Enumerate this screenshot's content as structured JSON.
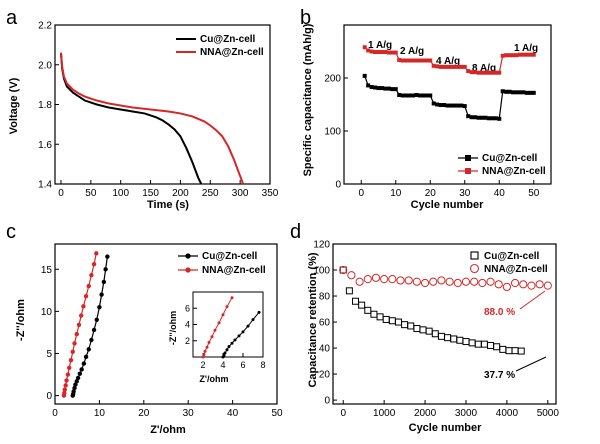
{
  "chart_data": [
    {
      "id": "a",
      "type": "line",
      "panel_label": "a",
      "xlabel": "Time (s)",
      "ylabel": "Voltage (V)",
      "xlim": [
        -10,
        350
      ],
      "ylim": [
        1.4,
        2.2
      ],
      "xticks": [
        0,
        50,
        100,
        150,
        200,
        250,
        300,
        350
      ],
      "yticks": [
        1.4,
        1.6,
        1.8,
        2.0,
        2.2
      ],
      "xtick_labels": [
        "0",
        "50",
        "100",
        "150",
        "200",
        "250",
        "300",
        "350"
      ],
      "ytick_labels": [
        "1.4",
        "1.6",
        "1.8",
        "2.0",
        "2.2"
      ],
      "legend_position": "top-right",
      "series": [
        {
          "name": "Cu@Zn-cell",
          "color": "#000000",
          "x": [
            0,
            2,
            5,
            10,
            20,
            30,
            40,
            60,
            80,
            100,
            120,
            140,
            150,
            160,
            170,
            180,
            190,
            200,
            205,
            210,
            215,
            220,
            225,
            230,
            235
          ],
          "y": [
            2.06,
            1.98,
            1.93,
            1.89,
            1.86,
            1.84,
            1.82,
            1.8,
            1.785,
            1.775,
            1.765,
            1.755,
            1.745,
            1.735,
            1.72,
            1.7,
            1.675,
            1.64,
            1.61,
            1.58,
            1.545,
            1.51,
            1.47,
            1.43,
            1.4
          ]
        },
        {
          "name": "NNA@Zn-cell",
          "color": "#d62728",
          "x": [
            0,
            2,
            5,
            10,
            20,
            30,
            40,
            60,
            80,
            100,
            120,
            150,
            180,
            200,
            220,
            240,
            250,
            260,
            270,
            280,
            285,
            290,
            295,
            300,
            305
          ],
          "y": [
            2.06,
            1.99,
            1.94,
            1.905,
            1.875,
            1.855,
            1.84,
            1.82,
            1.805,
            1.795,
            1.785,
            1.775,
            1.765,
            1.755,
            1.74,
            1.715,
            1.695,
            1.67,
            1.64,
            1.59,
            1.555,
            1.52,
            1.48,
            1.44,
            1.4
          ]
        }
      ]
    },
    {
      "id": "b",
      "type": "scatter-line",
      "panel_label": "b",
      "xlabel": "Cycle number",
      "ylabel": "Specific capacitance (mAh/g)",
      "xlim": [
        -5,
        55
      ],
      "ylim": [
        0,
        300
      ],
      "xticks": [
        0,
        10,
        20,
        30,
        40,
        50
      ],
      "yticks": [
        0,
        100,
        200
      ],
      "xtick_labels": [
        "0",
        "10",
        "20",
        "30",
        "40",
        "50"
      ],
      "ytick_labels": [
        "0",
        "100",
        "200"
      ],
      "legend_position": "bottom-right",
      "annotations": [
        "1 A/g",
        "2 A/g",
        "4 A/g",
        "8 A/g",
        "1 A/g"
      ],
      "series": [
        {
          "name": "Cu@Zn-cell",
          "color": "#000000",
          "marker": "square",
          "x": [
            1,
            2,
            3,
            4,
            5,
            6,
            7,
            8,
            9,
            10,
            11,
            12,
            13,
            14,
            15,
            16,
            17,
            18,
            19,
            20,
            21,
            22,
            23,
            24,
            25,
            26,
            27,
            28,
            29,
            30,
            31,
            32,
            33,
            34,
            35,
            36,
            37,
            38,
            39,
            40,
            41,
            42,
            43,
            44,
            45,
            46,
            47,
            48,
            49,
            50
          ],
          "y": [
            204,
            186,
            183,
            182,
            181,
            181,
            180,
            180,
            179,
            179,
            168,
            167,
            167,
            167,
            167,
            168,
            167,
            167,
            167,
            167,
            152,
            150,
            149,
            149,
            148,
            148,
            148,
            148,
            148,
            147,
            128,
            126,
            126,
            125,
            125,
            125,
            124,
            124,
            124,
            123,
            175,
            174,
            174,
            173,
            173,
            173,
            173,
            172,
            172,
            172
          ]
        },
        {
          "name": "NNA@Zn-cell",
          "color": "#d62728",
          "marker": "square",
          "x": [
            1,
            2,
            3,
            4,
            5,
            6,
            7,
            8,
            9,
            10,
            11,
            12,
            13,
            14,
            15,
            16,
            17,
            18,
            19,
            20,
            21,
            22,
            23,
            24,
            25,
            26,
            27,
            28,
            29,
            30,
            31,
            32,
            33,
            34,
            35,
            36,
            37,
            38,
            39,
            40,
            41,
            42,
            43,
            44,
            45,
            46,
            47,
            48,
            49,
            50
          ],
          "y": [
            258,
            252,
            250,
            249,
            249,
            249,
            249,
            248,
            248,
            248,
            234,
            233,
            233,
            233,
            233,
            233,
            233,
            233,
            233,
            233,
            223,
            222,
            221,
            221,
            221,
            221,
            221,
            221,
            221,
            221,
            213,
            211,
            211,
            210,
            210,
            210,
            210,
            210,
            210,
            210,
            242,
            243,
            243,
            243,
            243,
            244,
            244,
            244,
            244,
            244
          ]
        }
      ]
    },
    {
      "id": "c",
      "type": "scatter-line",
      "panel_label": "c",
      "xlabel": "Z'/ohm",
      "ylabel": "-Z''/ohm",
      "xlim": [
        0,
        50
      ],
      "ylim": [
        -1,
        18
      ],
      "xticks": [
        0,
        10,
        20,
        30,
        40,
        50
      ],
      "yticks": [
        0,
        5,
        10,
        15
      ],
      "xtick_labels": [
        "0",
        "10",
        "20",
        "30",
        "40",
        "50"
      ],
      "ytick_labels": [
        "0",
        "5",
        "10",
        "15"
      ],
      "legend_position": "top-right",
      "series": [
        {
          "name": "Cu@Zn-cell",
          "color": "#000000",
          "marker": "circle",
          "x": [
            4.0,
            4.1,
            4.2,
            4.4,
            4.6,
            4.9,
            5.2,
            5.6,
            6.0,
            6.5,
            7.0,
            7.6,
            8.2,
            8.8,
            9.4,
            10.0,
            10.5,
            11.0,
            11.4,
            11.8
          ],
          "y": [
            0.0,
            0.2,
            0.5,
            0.9,
            1.3,
            1.7,
            2.1,
            2.6,
            3.1,
            3.8,
            4.6,
            5.5,
            6.6,
            7.8,
            9.0,
            10.5,
            12.0,
            13.5,
            15.0,
            16.5
          ]
        },
        {
          "name": "NNA@Zn-cell",
          "color": "#d62728",
          "marker": "circle",
          "x": [
            2.0,
            2.1,
            2.2,
            2.4,
            2.6,
            2.9,
            3.2,
            3.6,
            4.0,
            4.4,
            4.9,
            5.4,
            5.9,
            6.4,
            7.0,
            7.6,
            8.2,
            8.8,
            9.3
          ],
          "y": [
            0.0,
            0.3,
            0.7,
            1.2,
            1.8,
            2.5,
            3.3,
            4.2,
            5.2,
            6.2,
            7.3,
            8.4,
            9.5,
            10.6,
            11.8,
            13.0,
            14.3,
            15.6,
            16.9
          ]
        }
      ],
      "inset": {
        "xlabel": "Z'/ohm",
        "ylabel": "-Z''/ohm",
        "xlim": [
          1,
          8
        ],
        "ylim": [
          0,
          8
        ],
        "xticks": [
          2,
          4,
          6,
          8
        ],
        "yticks": [
          2,
          4,
          6
        ],
        "xtick_labels": [
          "2",
          "4",
          "6",
          "8"
        ],
        "ytick_labels": [
          "2",
          "4",
          "6"
        ]
      }
    },
    {
      "id": "d",
      "type": "scatter",
      "panel_label": "d",
      "xlabel": "Cycle number",
      "ylabel": "Capacitance retention (%)",
      "xlim": [
        -250,
        5200
      ],
      "ylim": [
        -3,
        120
      ],
      "xticks": [
        0,
        1000,
        2000,
        3000,
        4000,
        5000
      ],
      "yticks": [
        0,
        20,
        40,
        60,
        80,
        100,
        120
      ],
      "xtick_labels": [
        "0",
        "1000",
        "2000",
        "3000",
        "4000",
        "5000"
      ],
      "ytick_labels": [
        "0",
        "20",
        "40",
        "60",
        "80",
        "100",
        "120"
      ],
      "legend_position": "top-right",
      "annotations": [
        "88.0 %",
        "37.7 %"
      ],
      "series": [
        {
          "name": "Cu@Zn-cell",
          "color": "#000000",
          "marker": "open-square",
          "x": [
            0,
            150,
            300,
            450,
            600,
            750,
            900,
            1050,
            1200,
            1350,
            1500,
            1650,
            1800,
            1950,
            2100,
            2250,
            2400,
            2550,
            2700,
            2850,
            3000,
            3150,
            3300,
            3450,
            3600,
            3750,
            3900,
            4050,
            4200,
            4350
          ],
          "y": [
            100,
            84,
            76,
            73,
            69,
            66,
            64,
            62,
            61,
            60,
            58,
            57,
            55,
            54,
            53,
            51,
            49,
            48,
            47,
            46,
            45,
            44,
            43,
            43,
            42,
            41,
            39,
            38,
            38,
            37.7
          ]
        },
        {
          "name": "NNA@Zn-cell",
          "color": "#d62728",
          "marker": "open-circle",
          "x": [
            0,
            200,
            400,
            600,
            800,
            1000,
            1200,
            1400,
            1600,
            1800,
            2000,
            2200,
            2400,
            2600,
            2800,
            3000,
            3200,
            3400,
            3600,
            3800,
            4000,
            4200,
            4400,
            4600,
            4800,
            5000
          ],
          "y": [
            100,
            96,
            91,
            93,
            94,
            93,
            93,
            92,
            92,
            91,
            90,
            91,
            92,
            91,
            90,
            91,
            91,
            90,
            91,
            89,
            87,
            90,
            89,
            88,
            89,
            88.0
          ]
        }
      ]
    }
  ]
}
